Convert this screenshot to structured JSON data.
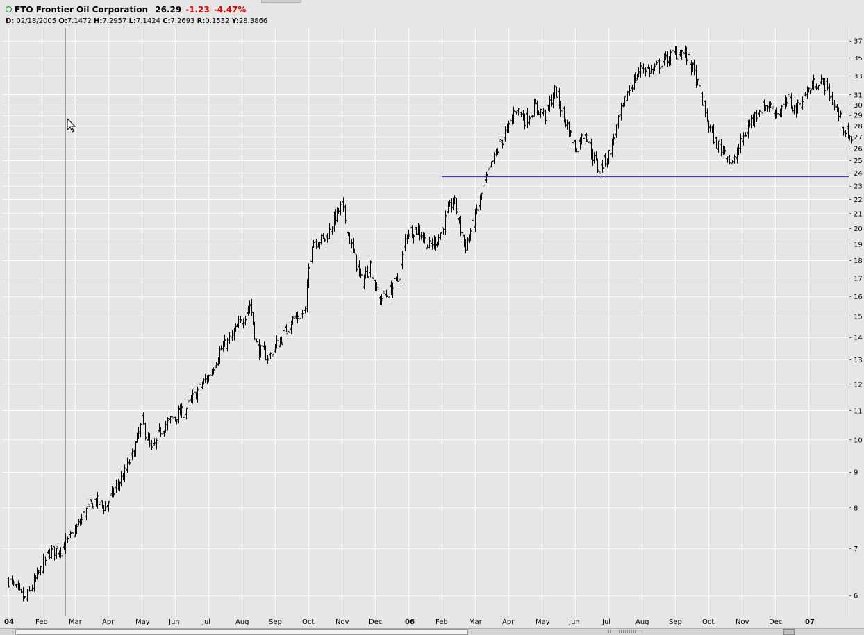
{
  "header": {
    "symbol": "FTO",
    "company": "Frontier Oil Corporation",
    "last": "26.29",
    "change": "-1.23",
    "change_pct": "-4.47%",
    "date_label": "D:",
    "date": "02/18/2005",
    "o_label": "O:",
    "open": "7.1472",
    "h_label": "H:",
    "high": "7.2957",
    "l_label": "L:",
    "low": "7.1424",
    "c_label": "C:",
    "close": "7.2693",
    "r_label": "R:",
    "range": "0.1532",
    "y_label": "Y:",
    "y": "28.3866"
  },
  "colors": {
    "background": "#e6e6e6",
    "grid": "#ffffff",
    "bars": "#000000",
    "support_line": "#5a32c8",
    "negative": "#e00000"
  },
  "chart_data": {
    "type": "ohlc-bar",
    "symbol": "FTO",
    "y_scale": "log",
    "ylim": [
      5.6,
      38
    ],
    "grid": true,
    "x_tick_labels": [
      "04",
      "Feb",
      "Mar",
      "Apr",
      "May",
      "Jun",
      "Jul",
      "Aug",
      "Sep",
      "Oct",
      "Nov",
      "Dec",
      "06",
      "Feb",
      "Mar",
      "Apr",
      "May",
      "Jun",
      "Jul",
      "Aug",
      "Sep",
      "Oct",
      "Nov",
      "Dec",
      "07"
    ],
    "x_ticks_months": [
      0,
      1,
      2,
      3,
      4,
      5,
      6,
      7,
      8,
      9,
      10,
      11,
      12,
      13,
      14,
      15,
      16,
      17,
      18,
      19,
      20,
      21,
      22,
      23,
      24
    ],
    "y_ticks": [
      6,
      7,
      8,
      9,
      10,
      11,
      12,
      13,
      14,
      15,
      16,
      17,
      18,
      19,
      20,
      21,
      22,
      23,
      24,
      25,
      26,
      27,
      28,
      29,
      30,
      31,
      33,
      35,
      37
    ],
    "price_path": [
      [
        0.0,
        6.3
      ],
      [
        0.5,
        5.9
      ],
      [
        0.8,
        6.3
      ],
      [
        1.2,
        6.9
      ],
      [
        1.6,
        7.0
      ],
      [
        2.0,
        7.4
      ],
      [
        2.3,
        7.9
      ],
      [
        2.6,
        8.2
      ],
      [
        2.9,
        8.0
      ],
      [
        3.2,
        8.5
      ],
      [
        3.5,
        9.0
      ],
      [
        3.75,
        9.6
      ],
      [
        4.0,
        10.6
      ],
      [
        4.3,
        9.6
      ],
      [
        4.6,
        10.4
      ],
      [
        5.0,
        10.8
      ],
      [
        5.3,
        11.0
      ],
      [
        5.7,
        11.8
      ],
      [
        6.0,
        12.3
      ],
      [
        6.35,
        13.4
      ],
      [
        6.7,
        14.0
      ],
      [
        7.0,
        14.8
      ],
      [
        7.25,
        15.6
      ],
      [
        7.45,
        13.5
      ],
      [
        7.8,
        13.1
      ],
      [
        8.2,
        14.0
      ],
      [
        8.5,
        14.8
      ],
      [
        8.9,
        15.2
      ],
      [
        9.0,
        17.5
      ],
      [
        9.1,
        19.2
      ],
      [
        9.5,
        19.3
      ],
      [
        9.85,
        21.0
      ],
      [
        10.0,
        21.5
      ],
      [
        10.3,
        18.7
      ],
      [
        10.6,
        16.7
      ],
      [
        10.85,
        17.8
      ],
      [
        11.1,
        15.8
      ],
      [
        11.4,
        16.2
      ],
      [
        11.7,
        17.0
      ],
      [
        11.95,
        19.8
      ],
      [
        12.3,
        19.9
      ],
      [
        12.6,
        18.8
      ],
      [
        12.9,
        19.4
      ],
      [
        13.1,
        20.6
      ],
      [
        13.35,
        22.0
      ],
      [
        13.7,
        18.8
      ],
      [
        14.0,
        20.8
      ],
      [
        14.3,
        23.3
      ],
      [
        14.7,
        26.2
      ],
      [
        15.0,
        27.8
      ],
      [
        15.2,
        29.8
      ],
      [
        15.5,
        28.5
      ],
      [
        15.8,
        29.8
      ],
      [
        16.1,
        29.0
      ],
      [
        16.4,
        31.5
      ],
      [
        16.7,
        28.5
      ],
      [
        17.0,
        26.0
      ],
      [
        17.3,
        27.5
      ],
      [
        17.5,
        25.5
      ],
      [
        17.7,
        24.2
      ],
      [
        18.0,
        25.5
      ],
      [
        18.3,
        28.5
      ],
      [
        18.6,
        31.5
      ],
      [
        19.0,
        34.0
      ],
      [
        19.3,
        33.5
      ],
      [
        19.6,
        34.5
      ],
      [
        19.9,
        35.3
      ],
      [
        20.2,
        35.8
      ],
      [
        20.5,
        34.0
      ],
      [
        20.8,
        30.5
      ],
      [
        21.0,
        28.0
      ],
      [
        21.2,
        26.5
      ],
      [
        21.5,
        25.8
      ],
      [
        21.7,
        24.5
      ],
      [
        21.9,
        26.0
      ],
      [
        22.2,
        28.0
      ],
      [
        22.5,
        29.6
      ],
      [
        22.8,
        30.0
      ],
      [
        23.1,
        29.2
      ],
      [
        23.4,
        30.5
      ],
      [
        23.6,
        29.5
      ],
      [
        23.9,
        31.0
      ],
      [
        24.2,
        32.4
      ],
      [
        24.5,
        32.0
      ],
      [
        24.7,
        30.5
      ],
      [
        24.9,
        29.0
      ],
      [
        25.1,
        27.5
      ],
      [
        25.3,
        26.3
      ]
    ],
    "support_line": {
      "start_month": 13.0,
      "end_month": 25.8,
      "value": 23.7
    }
  }
}
